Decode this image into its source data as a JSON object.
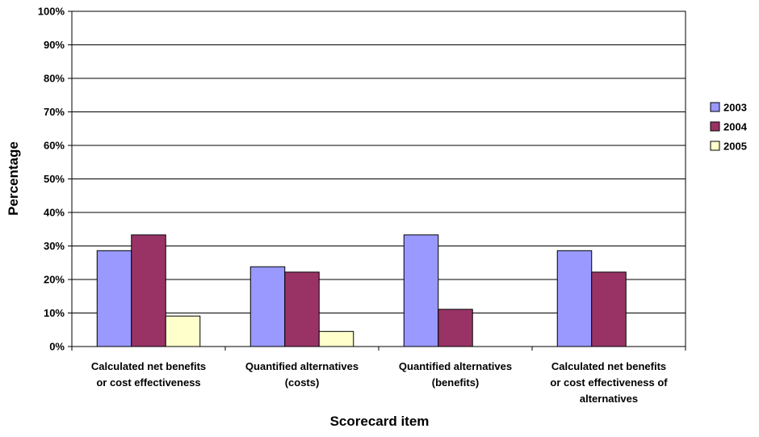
{
  "chart_data": {
    "type": "bar",
    "title": "",
    "xlabel": "Scorecard item",
    "ylabel": "Percentage",
    "ylim": [
      0,
      100
    ],
    "yticks": [
      0,
      10,
      20,
      30,
      40,
      50,
      60,
      70,
      80,
      90,
      100
    ],
    "ytick_labels": [
      "0%",
      "10%",
      "20%",
      "30%",
      "40%",
      "50%",
      "60%",
      "70%",
      "80%",
      "90%",
      "100%"
    ],
    "grid": true,
    "legend_position": "right",
    "categories": [
      [
        "Calculated net benefits",
        "or cost effectiveness"
      ],
      [
        "Quantified alternatives",
        "(costs)"
      ],
      [
        "Quantified alternatives",
        "(benefits)"
      ],
      [
        "Calculated net benefits",
        "or cost effectiveness of",
        "alternatives"
      ]
    ],
    "series": [
      {
        "name": "2003",
        "color": "#9999ff",
        "values": [
          28.6,
          23.8,
          33.3,
          28.6
        ]
      },
      {
        "name": "2004",
        "color": "#993366",
        "values": [
          33.3,
          22.2,
          11.1,
          22.2
        ]
      },
      {
        "name": "2005",
        "color": "#ffffcc",
        "values": [
          9.1,
          4.5,
          0,
          0
        ]
      }
    ]
  }
}
